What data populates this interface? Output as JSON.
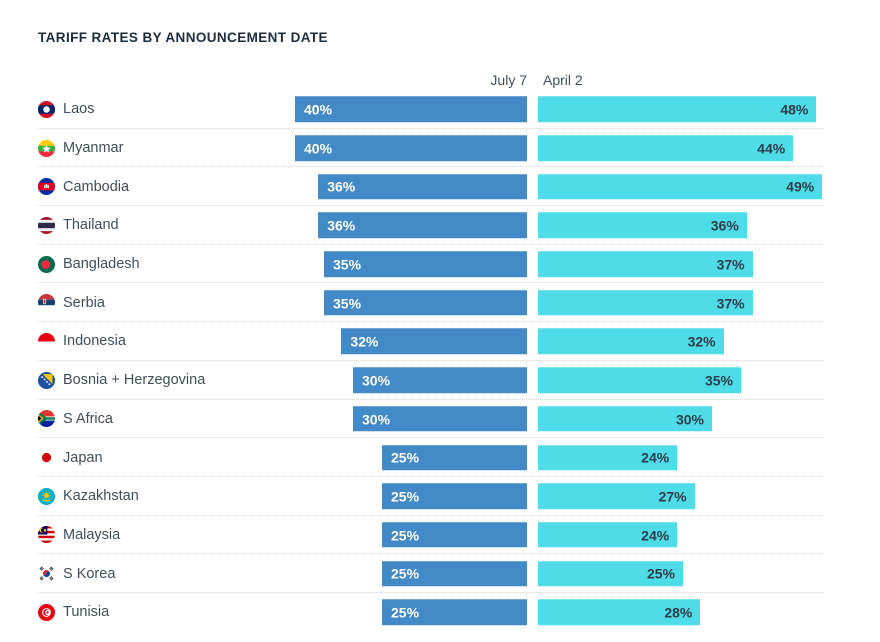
{
  "title": "TARIFF RATES BY ANNOUNCEMENT DATE",
  "value_suffix": "%",
  "colors": {
    "july7_bar": "#4289c7",
    "april2_bar": "#4edce8",
    "july7_label": "#ffffff",
    "april2_label": "#2d3c48",
    "title_text": "#1d2d3e",
    "country_text": "#3f4e5a",
    "separator": "#d4d4d4"
  },
  "flags": [
    "laos",
    "myanmar",
    "cambodia",
    "thailand",
    "bangladesh",
    "serbia",
    "indonesia",
    "bosnia-herzegovina",
    "s-africa",
    "japan",
    "kazakhstan",
    "malaysia",
    "s-korea",
    "tunisia"
  ],
  "chart_data": {
    "type": "bar",
    "orientation": "horizontal",
    "title": "TARIFF RATES BY ANNOUNCEMENT DATE",
    "categories": [
      "Laos",
      "Myanmar",
      "Cambodia",
      "Thailand",
      "Bangladesh",
      "Serbia",
      "Indonesia",
      "Bosnia + Herzegovina",
      "S Africa",
      "Japan",
      "Kazakhstan",
      "Malaysia",
      "S Korea",
      "Tunisia"
    ],
    "series": [
      {
        "name": "July 7",
        "color": "#4289c7",
        "values": [
          40,
          40,
          36,
          36,
          35,
          35,
          32,
          30,
          30,
          25,
          25,
          25,
          25,
          25
        ]
      },
      {
        "name": "April 2",
        "color": "#4edce8",
        "values": [
          48,
          44,
          49,
          36,
          37,
          37,
          32,
          35,
          30,
          24,
          27,
          24,
          25,
          28
        ]
      }
    ],
    "value_suffix": "%",
    "xlim": [
      0,
      49
    ],
    "grid": false,
    "row_separators": "dotted",
    "legend_position": "top"
  }
}
